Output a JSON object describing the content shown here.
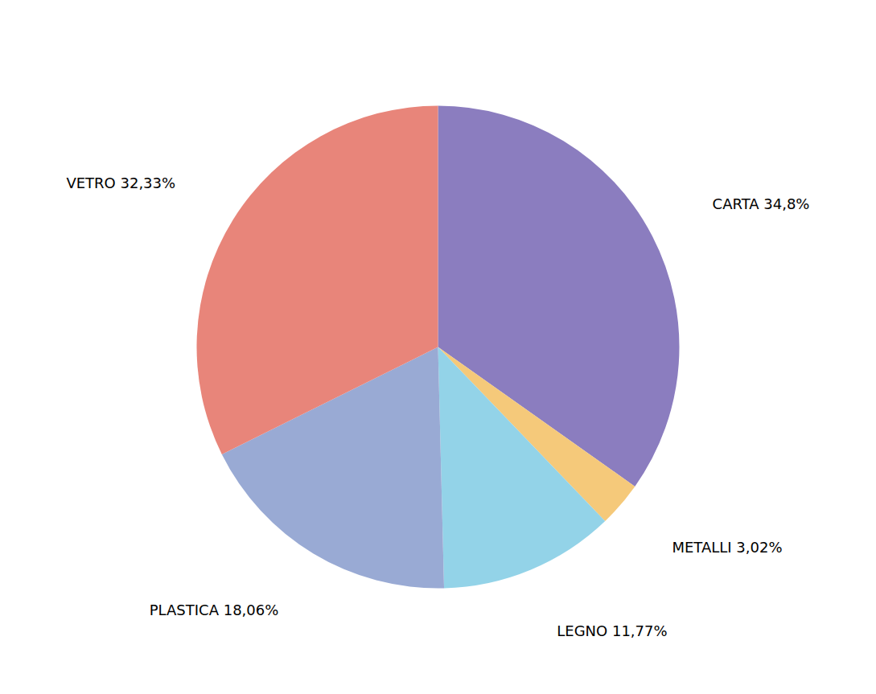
{
  "chart_data": {
    "type": "pie",
    "categories": [
      "CARTA 34,8%",
      "METALLI 3,02%",
      "LEGNO 11,77%",
      "PLASTICA 18,06%",
      "VETRO 32,33%"
    ],
    "values": [
      34.8,
      3.02,
      11.77,
      18.06,
      32.33
    ],
    "colors": [
      "#8b7dbf",
      "#f5c97a",
      "#93d3e8",
      "#99aad4",
      "#e8857a"
    ]
  }
}
